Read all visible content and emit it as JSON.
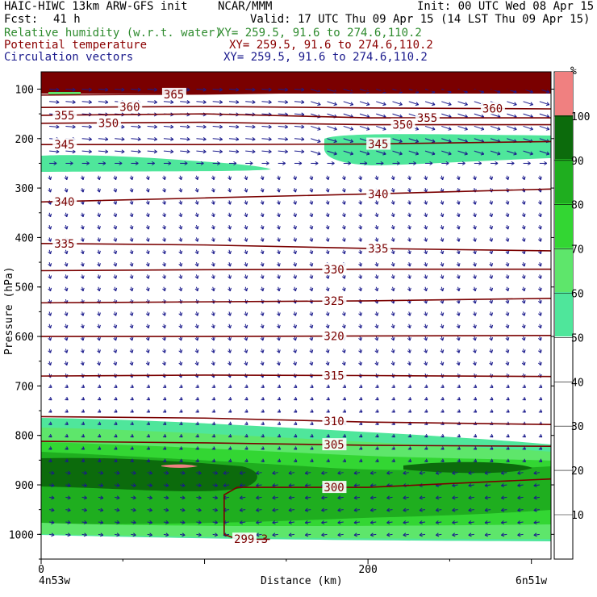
{
  "header": {
    "model_title": "HAIC-HIWC 13km ARW-GFS init",
    "org": "NCAR/MMM",
    "init": "Init: 00 UTC Wed 08 Apr 15",
    "fcst_label": "Fcst:",
    "fcst_value": "41 h",
    "valid": "Valid: 17 UTC Thu 09 Apr 15 (14 LST Thu 09 Apr 15)",
    "field1": "Relative humidity (w.r.t. water)",
    "field1_xy": "XY= 259.5, 91.6 to 274.6,110.2",
    "field2": "Potential temperature",
    "field2_xy": "XY= 259.5, 91.6 to 274.6,110.2",
    "field3": "Circulation vectors",
    "field3_xy": "XY= 259.5, 91.6 to 274.6,110.2"
  },
  "axes": {
    "ylabel": "Pressure (hPa)",
    "xlabel": "Distance (km)",
    "left_endpoint": "4n53w",
    "right_endpoint": "6n51w"
  },
  "colorbar": {
    "unit": "%",
    "levels": [
      "10",
      "20",
      "30",
      "40",
      "50",
      "60",
      "70",
      "80",
      "90",
      "100"
    ],
    "colors": {
      "50-60": "#4fe69b",
      "60-70": "#5ee66b",
      "70-80": "#33d633",
      "80-90": "#1fae1f",
      "90-100": "#0c6b0c",
      "100+": "#f08080"
    }
  },
  "chart_data": {
    "type": "cross-section",
    "x_range_km": [
      0,
      312
    ],
    "x_ticks": [
      0,
      200
    ],
    "y_range_hPa": [
      1050,
      65
    ],
    "y_scale": "linear (pressure, inverted)",
    "y_ticks": [
      100,
      200,
      300,
      400,
      500,
      600,
      700,
      800,
      900,
      1000
    ],
    "theta_isentropes": [
      {
        "value": "365",
        "label_text": "365",
        "points": [
          [
            0,
            112
          ],
          [
            100,
            110
          ],
          [
            200,
            105
          ],
          [
            312,
            100
          ]
        ]
      },
      {
        "value": "360",
        "label_text": "360",
        "points": [
          [
            0,
            137
          ],
          [
            100,
            135
          ],
          [
            200,
            138
          ],
          [
            312,
            140
          ]
        ]
      },
      {
        "value": "355",
        "label_text": "355",
        "points": [
          [
            0,
            153
          ],
          [
            100,
            150
          ],
          [
            200,
            158
          ],
          [
            312,
            158
          ]
        ]
      },
      {
        "value": "350",
        "label_text": "350",
        "points": [
          [
            0,
            169
          ],
          [
            100,
            167
          ],
          [
            200,
            172
          ],
          [
            312,
            172
          ]
        ]
      },
      {
        "value": "345",
        "label_text": "345",
        "points": [
          [
            0,
            212
          ],
          [
            100,
            212
          ],
          [
            200,
            211
          ],
          [
            312,
            206
          ]
        ]
      },
      {
        "value": "340",
        "label_text": "340",
        "points": [
          [
            0,
            328
          ],
          [
            100,
            320
          ],
          [
            200,
            312
          ],
          [
            312,
            302
          ]
        ]
      },
      {
        "value": "335",
        "label_text": "335",
        "points": [
          [
            0,
            412
          ],
          [
            100,
            415
          ],
          [
            200,
            422
          ],
          [
            312,
            427
          ]
        ]
      },
      {
        "value": "330",
        "label_text": "330",
        "points": [
          [
            0,
            467
          ],
          [
            100,
            465
          ],
          [
            200,
            464
          ],
          [
            312,
            464
          ]
        ]
      },
      {
        "value": "325",
        "label_text": "325",
        "points": [
          [
            0,
            532
          ],
          [
            100,
            530
          ],
          [
            200,
            528
          ],
          [
            312,
            523
          ]
        ]
      },
      {
        "value": "320",
        "label_text": "320",
        "points": [
          [
            0,
            600
          ],
          [
            100,
            600
          ],
          [
            200,
            599
          ],
          [
            312,
            598
          ]
        ]
      },
      {
        "value": "315",
        "label_text": "315",
        "points": [
          [
            0,
            680
          ],
          [
            100,
            678
          ],
          [
            200,
            679
          ],
          [
            312,
            681
          ]
        ]
      },
      {
        "value": "310",
        "label_text": "310",
        "points": [
          [
            0,
            762
          ],
          [
            100,
            765
          ],
          [
            200,
            773
          ],
          [
            312,
            778
          ]
        ]
      },
      {
        "value": "305",
        "label_text": "305",
        "points": [
          [
            0,
            812
          ],
          [
            100,
            815
          ],
          [
            200,
            820
          ],
          [
            312,
            822
          ]
        ]
      },
      {
        "value": "300",
        "label_text": "300",
        "points": [
          [
            112,
            1000
          ],
          [
            112,
            920
          ],
          [
            120,
            905
          ],
          [
            200,
            905
          ],
          [
            312,
            888
          ]
        ]
      },
      {
        "value": "299.3",
        "label_text": "299.3",
        "points": [
          [
            112,
            1000
          ],
          [
            120,
            1010
          ],
          [
            140,
            1010
          ]
        ]
      }
    ],
    "rh_regions": [
      {
        "band": "50-60",
        "desc": "upper-left moist layer",
        "x": [
          0,
          148
        ],
        "p": [
          235,
          255
        ]
      },
      {
        "band": "50-60",
        "desc": "upper-right moist layer",
        "x": [
          175,
          312
        ],
        "p": [
          190,
          230
        ]
      },
      {
        "band": "50-60",
        "desc": "boundary layer top",
        "x": [
          0,
          312
        ],
        "p": [
          760,
          1015
        ]
      },
      {
        "band": "60-70",
        "desc": "boundary layer",
        "x": [
          0,
          312
        ],
        "p": [
          790,
          1015
        ]
      },
      {
        "band": "70-80",
        "desc": "boundary layer",
        "x": [
          0,
          312
        ],
        "p": [
          815,
          1010
        ]
      },
      {
        "band": "80-90",
        "desc": "boundary layer core",
        "x": [
          0,
          312
        ],
        "p": [
          835,
          990
        ]
      },
      {
        "band": "90-100",
        "desc": "boundary layer max",
        "x": [
          0,
          260
        ],
        "p": [
          855,
          920
        ]
      },
      {
        "band": "100+",
        "desc": "saturated pocket",
        "x": [
          75,
          95
        ],
        "p": [
          868,
          875
        ]
      }
    ],
    "top_cap": {
      "desc": "above-top stratospheric shading",
      "p": [
        65,
        95
      ],
      "color": "#7a0000"
    },
    "vectors": {
      "desc": "circulation vectors, mostly eastward aloft, weak downward mid-levels",
      "x_spacing_km": 10,
      "p_spacing_hPa": 25
    }
  }
}
